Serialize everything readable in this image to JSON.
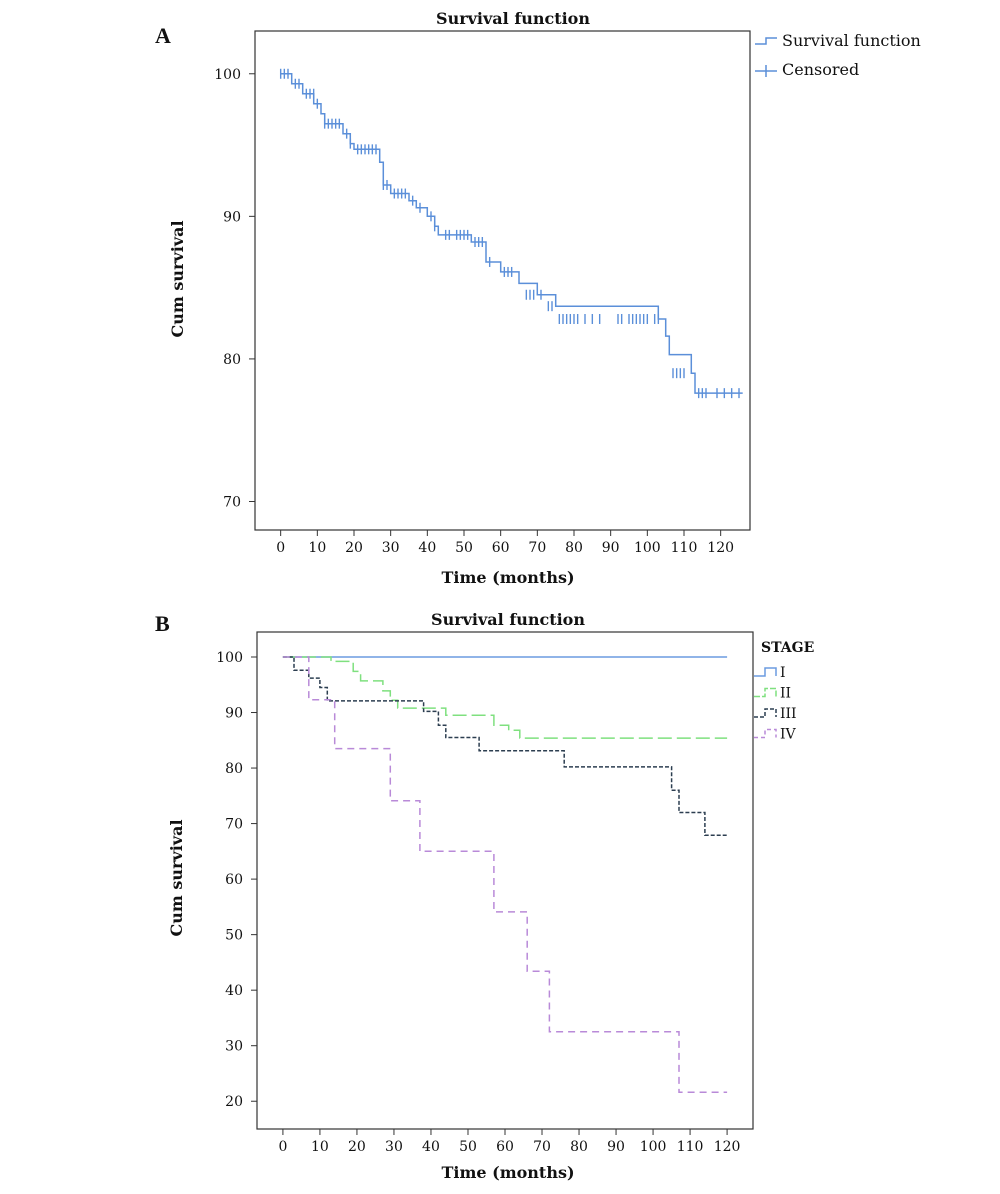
{
  "chart_data": [
    {
      "panel_label": "A",
      "type": "line",
      "step": true,
      "title": "Survival function",
      "xlabel": "Time (months)",
      "ylabel": "Cum survival",
      "xlim": [
        -7,
        128
      ],
      "ylim": [
        68,
        103
      ],
      "xticks": [
        0,
        10,
        20,
        30,
        40,
        50,
        60,
        70,
        80,
        90,
        100,
        110,
        120
      ],
      "yticks": [
        70,
        80,
        90,
        100
      ],
      "legend": [
        "Survival function",
        "Censored"
      ],
      "legend_position": "outside-right",
      "grid": false,
      "color": "#5b8fd9",
      "series": [
        {
          "name": "Survival function",
          "x": [
            0,
            3,
            6,
            9,
            11,
            12,
            17,
            19,
            20,
            27,
            28,
            30,
            35,
            37,
            40,
            42,
            43,
            52,
            56,
            60,
            65,
            70,
            75,
            103,
            105,
            106,
            112,
            113,
            126
          ],
          "y": [
            100,
            99.3,
            98.6,
            97.9,
            97.2,
            96.5,
            95.8,
            95.1,
            94.7,
            93.8,
            92.2,
            91.6,
            91.1,
            90.6,
            90.0,
            89.3,
            88.7,
            88.2,
            86.8,
            86.1,
            85.3,
            84.5,
            83.7,
            82.8,
            81.6,
            80.3,
            79.0,
            77.6,
            77.6
          ]
        }
      ],
      "censored": {
        "name": "Censored",
        "x": [
          0,
          1,
          2,
          4,
          5,
          7,
          8,
          9,
          10,
          12,
          13,
          14,
          15,
          16,
          18,
          19,
          21,
          22,
          23,
          24,
          25,
          26,
          28,
          29,
          31,
          32,
          33,
          34,
          36,
          38,
          41,
          42,
          45,
          46,
          48,
          49,
          50,
          51,
          53,
          54,
          55,
          57,
          61,
          62,
          63,
          67,
          68,
          69,
          71,
          73,
          74,
          76,
          77,
          78,
          79,
          80,
          81,
          83,
          85,
          87,
          92,
          93,
          95,
          96,
          97,
          98,
          99,
          100,
          102,
          103,
          107,
          108,
          109,
          110,
          114,
          115,
          116,
          119,
          121,
          123,
          125
        ],
        "y": [
          100,
          100,
          100,
          99.3,
          99.3,
          98.6,
          98.6,
          98.6,
          97.9,
          96.5,
          96.5,
          96.5,
          96.5,
          96.5,
          95.8,
          95.1,
          94.7,
          94.7,
          94.7,
          94.7,
          94.7,
          94.7,
          92.2,
          92.2,
          91.6,
          91.6,
          91.6,
          91.6,
          91.1,
          90.6,
          90.0,
          89.3,
          88.7,
          88.7,
          88.7,
          88.7,
          88.7,
          88.7,
          88.2,
          88.2,
          88.2,
          86.8,
          86.1,
          86.1,
          86.1,
          84.5,
          84.5,
          84.5,
          84.5,
          83.7,
          83.7,
          82.8,
          82.8,
          82.8,
          82.8,
          82.8,
          82.8,
          82.8,
          82.8,
          82.8,
          82.8,
          82.8,
          82.8,
          82.8,
          82.8,
          82.8,
          82.8,
          82.8,
          82.8,
          82.8,
          79.0,
          79.0,
          79.0,
          79.0,
          77.6,
          77.6,
          77.6,
          77.6,
          77.6,
          77.6,
          77.6
        ]
      }
    },
    {
      "panel_label": "B",
      "type": "line",
      "step": true,
      "title": "Survival function",
      "xlabel": "Time (months)",
      "ylabel": "Cum survival",
      "xlim": [
        -7,
        127
      ],
      "ylim": [
        15,
        104.5
      ],
      "xticks": [
        0,
        10,
        20,
        30,
        40,
        50,
        60,
        70,
        80,
        90,
        100,
        110,
        120
      ],
      "yticks": [
        20,
        30,
        40,
        50,
        60,
        70,
        80,
        90,
        100
      ],
      "legend_title": "STAGE",
      "legend_position": "outside-right",
      "grid": false,
      "series": [
        {
          "name": "I",
          "color": "#6b9be0",
          "dash": "solid",
          "x": [
            0,
            120
          ],
          "y": [
            100,
            100
          ]
        },
        {
          "name": "II",
          "color": "#7fe07f",
          "dash": "long-dash",
          "x": [
            0,
            13,
            19,
            21,
            27,
            29,
            31,
            44,
            57,
            61,
            64,
            120
          ],
          "y": [
            100,
            99.2,
            97.4,
            95.7,
            93.9,
            92.2,
            90.8,
            89.5,
            87.7,
            86.8,
            85.4,
            85.4
          ]
        },
        {
          "name": "III",
          "color": "#2c3e50",
          "dash": "dotted-dash",
          "x": [
            0,
            3,
            7,
            10,
            12,
            38,
            42,
            44,
            53,
            76,
            105,
            107,
            114,
            120
          ],
          "y": [
            100,
            97.6,
            96.2,
            94.5,
            92.1,
            90.2,
            87.7,
            85.5,
            83.1,
            80.2,
            76.0,
            72.0,
            67.9,
            67.9
          ]
        },
        {
          "name": "IV",
          "color": "#b98ad8",
          "dash": "short-dash",
          "x": [
            0,
            7,
            14,
            29,
            37,
            57,
            66,
            72,
            107,
            120
          ],
          "y": [
            100,
            92.3,
            83.5,
            74.1,
            65.0,
            54.1,
            43.4,
            32.5,
            21.6,
            21.6
          ]
        }
      ]
    }
  ]
}
